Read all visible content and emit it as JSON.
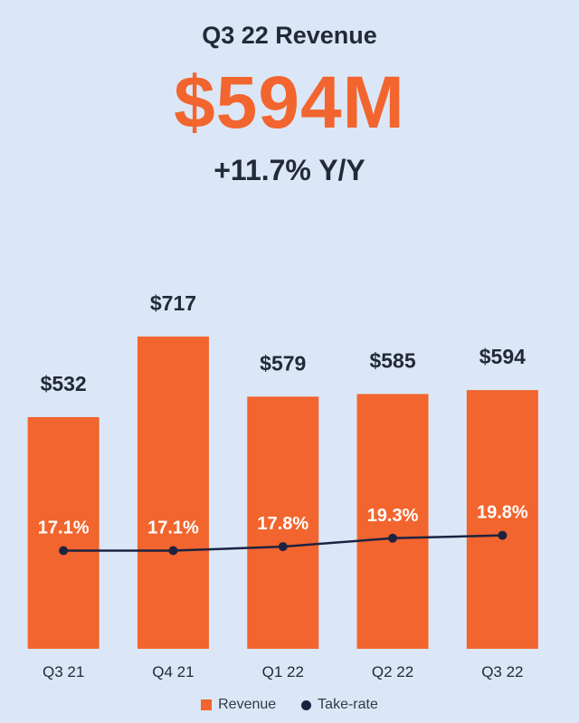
{
  "header": {
    "title": "Q3 22 Revenue",
    "headline": "$594M",
    "subtitle": "+11.7% Y/Y"
  },
  "colors": {
    "background": "#dbe7f6",
    "bar": "#f2652e",
    "line": "#1c2340",
    "headline": "#f2652e",
    "text": "#222a36"
  },
  "chart_data": {
    "type": "bar",
    "categories": [
      "Q3 21",
      "Q4 21",
      "Q1 22",
      "Q2 22",
      "Q3 22"
    ],
    "series": [
      {
        "name": "Revenue",
        "type": "bar",
        "values": [
          532,
          717,
          579,
          585,
          594
        ],
        "labels": [
          "$532",
          "$717",
          "$579",
          "$585",
          "$594"
        ]
      },
      {
        "name": "Take-rate",
        "type": "line",
        "values": [
          17.1,
          17.1,
          17.8,
          19.3,
          19.8
        ],
        "labels": [
          "17.1%",
          "17.1%",
          "17.8%",
          "19.3%",
          "19.8%"
        ]
      }
    ],
    "legend": [
      "Revenue",
      "Take-rate"
    ],
    "legend_position": "bottom",
    "grid": false,
    "xlabel": "",
    "ylabel": ""
  }
}
